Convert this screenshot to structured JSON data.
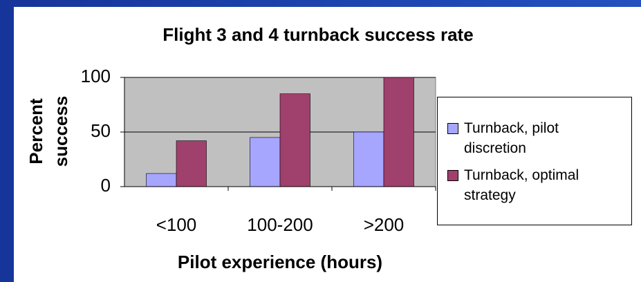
{
  "chart_data": {
    "type": "bar",
    "title": "Flight 3 and 4 turnback success rate",
    "x_label": "Pilot experience (hours)",
    "y_label": "Percent success",
    "categories": [
      "<100",
      "100-200",
      ">200"
    ],
    "series": [
      {
        "name": "Turnback, pilot discretion",
        "color": "#a6a6ff",
        "values": [
          12,
          45,
          50
        ]
      },
      {
        "name": "Turnback, optimal strategy",
        "color": "#a0406c",
        "values": [
          42,
          85,
          100
        ]
      }
    ],
    "ylim": [
      0,
      100
    ],
    "yticks": [
      0,
      50,
      100
    ],
    "grid": true,
    "legend": "right"
  }
}
